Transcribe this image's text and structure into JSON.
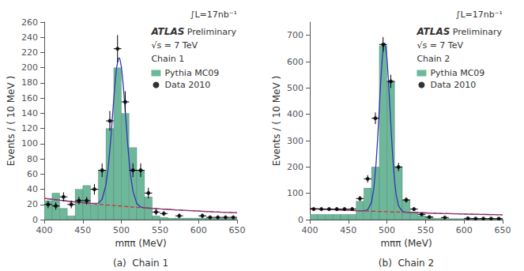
{
  "chart_data": [
    {
      "type": "histogram",
      "title": "(a)  Chain 1",
      "annotations": [
        "∫L=17nb⁻¹",
        "ATLAS",
        "Preliminary",
        "√s = 7 TeV",
        "Chain 1"
      ],
      "xlabel": "mππ (MeV)",
      "ylabel": "Events / ( 10 MeV )",
      "xlim": [
        400,
        650
      ],
      "xticks": [
        400,
        450,
        500,
        550,
        600,
        650
      ],
      "ylim": [
        0,
        260
      ],
      "yticks": [
        0,
        20,
        40,
        60,
        80,
        100,
        120,
        140,
        160,
        180,
        200,
        220,
        240,
        260
      ],
      "grid": false,
      "legend": "upper right",
      "series": [
        {
          "name": "Pythia MC09",
          "type": "histogram",
          "color": "#6db89a",
          "bins": [
            400,
            410,
            420,
            430,
            440,
            450,
            460,
            470,
            480,
            490,
            500,
            510,
            520,
            530,
            540,
            550,
            560,
            570,
            580,
            590,
            600,
            610,
            620,
            630,
            640,
            650
          ],
          "values": [
            25,
            35,
            15,
            5,
            40,
            45,
            20,
            65,
            120,
            200,
            140,
            95,
            65,
            30,
            5,
            3,
            2,
            2,
            2,
            2,
            2,
            2,
            2,
            2,
            2
          ]
        },
        {
          "name": "Data 2010",
          "type": "scatter",
          "color": "#000000",
          "marker": "circle",
          "x": [
            405,
            415,
            425,
            435,
            445,
            455,
            465,
            475,
            485,
            495,
            505,
            515,
            525,
            535,
            545,
            555,
            575,
            605,
            615,
            625,
            635,
            645
          ],
          "values": [
            20,
            18,
            30,
            20,
            25,
            25,
            40,
            65,
            130,
            225,
            155,
            65,
            65,
            35,
            10,
            8,
            5,
            5,
            3,
            3,
            3,
            3
          ],
          "yerr": [
            5,
            5,
            6,
            5,
            5,
            5,
            7,
            9,
            13,
            18,
            14,
            9,
            9,
            7,
            4,
            3,
            3,
            3,
            2,
            2,
            2,
            2
          ],
          "xerr": 5
        },
        {
          "type": "line",
          "color": "#3333bb",
          "line_style": "solid",
          "x": [
            400,
            410,
            420,
            430,
            440,
            450,
            460,
            470,
            475,
            480,
            483,
            486,
            488,
            490,
            492,
            494,
            496,
            497,
            498,
            500,
            502,
            504,
            506,
            508,
            510,
            512,
            515,
            520,
            525,
            530,
            540,
            550,
            560,
            570,
            580,
            590,
            600,
            610,
            620,
            630,
            640,
            650
          ],
          "values": [
            28,
            26.76,
            25.57,
            24.43,
            23.35,
            22.31,
            21.33,
            21.63,
            26.76,
            45.85,
            69.43,
            103.35,
            130.1,
            157.52,
            182.45,
            201.49,
            211.75,
            213.02,
            211.59,
            201.0,
            181.63,
            156.37,
            128.62,
            101.55,
            77.53,
            57.93,
            37.31,
            21.24,
            16.72,
            15.61,
            14.82,
            14.16,
            13.53,
            12.93,
            12.36,
            11.81,
            11.28,
            10.78,
            10.3,
            9.84,
            9.41,
            8.99
          ]
        },
        {
          "type": "line",
          "color": "#cc3333",
          "line_style": "dashed",
          "x": [
            400,
            410,
            420,
            430,
            440,
            450,
            460,
            470,
            475,
            480,
            483,
            486,
            488,
            490,
            492,
            494,
            496,
            497,
            498,
            500,
            502,
            504,
            506,
            508,
            510,
            512,
            515,
            520,
            525,
            530,
            540,
            550,
            560,
            570,
            580,
            590,
            600,
            610,
            620,
            630,
            640,
            650
          ],
          "values": [
            28,
            26.76,
            25.57,
            24.43,
            23.35,
            22.31,
            21.32,
            20.37,
            19.91,
            19.46,
            19.2,
            18.94,
            18.77,
            18.6,
            18.43,
            18.26,
            18.1,
            18.02,
            17.94,
            17.77,
            17.61,
            17.45,
            17.29,
            17.14,
            16.98,
            16.83,
            16.6,
            16.23,
            15.86,
            15.51,
            14.82,
            14.16,
            13.53,
            12.93,
            12.36,
            11.81,
            11.28,
            10.78,
            10.3,
            9.84,
            9.41,
            8.99
          ]
        }
      ]
    },
    {
      "type": "histogram",
      "title": "(b)  Chain 2",
      "annotations": [
        "∫L=17nb⁻¹",
        "ATLAS",
        "Preliminary",
        "√s = 7 TeV",
        "Chain 2"
      ],
      "xlabel": "mππ (MeV)",
      "ylabel": "Events / ( 10 MeV )",
      "xlim": [
        400,
        650
      ],
      "xticks": [
        400,
        450,
        500,
        550,
        600,
        650
      ],
      "ylim": [
        0,
        750
      ],
      "yticks": [
        0,
        100,
        200,
        300,
        400,
        500,
        600,
        700
      ],
      "grid": false,
      "legend": "upper right",
      "series": [
        {
          "name": "Pythia MC09",
          "type": "histogram",
          "color": "#6db89a",
          "bins": [
            400,
            410,
            420,
            430,
            440,
            450,
            460,
            470,
            480,
            490,
            500,
            510,
            520,
            530,
            540,
            550,
            560,
            570,
            580,
            590,
            600,
            610,
            620,
            630,
            640,
            650
          ],
          "values": [
            20,
            20,
            20,
            20,
            20,
            20,
            70,
            120,
            200,
            660,
            525,
            200,
            75,
            30,
            15,
            8,
            5,
            5,
            4,
            4,
            3,
            3,
            3,
            3,
            3
          ]
        },
        {
          "name": "Data 2010",
          "type": "scatter",
          "color": "#000000",
          "marker": "circle",
          "x": [
            405,
            415,
            425,
            435,
            445,
            455,
            465,
            475,
            485,
            495,
            505,
            515,
            525,
            535,
            545,
            555,
            575,
            605,
            615,
            625,
            635,
            645
          ],
          "values": [
            40,
            40,
            40,
            40,
            40,
            40,
            80,
            155,
            385,
            665,
            525,
            200,
            75,
            40,
            20,
            10,
            8,
            5,
            4,
            4,
            4,
            4
          ],
          "yerr": [
            7,
            7,
            7,
            7,
            7,
            7,
            10,
            14,
            22,
            28,
            25,
            16,
            10,
            7,
            5,
            4,
            3,
            3,
            3,
            3,
            3,
            3
          ],
          "xerr": 5
        },
        {
          "type": "line",
          "color": "#3333bb",
          "line_style": "solid",
          "x": [
            400,
            410,
            420,
            430,
            440,
            450,
            460,
            470,
            475,
            480,
            483,
            486,
            488,
            490,
            492,
            494,
            496,
            497,
            498,
            500,
            502,
            504,
            506,
            508,
            510,
            512,
            515,
            520,
            525,
            530,
            540,
            550,
            560,
            570,
            580,
            590,
            600,
            610,
            620,
            630,
            640,
            650
          ],
          "values": [
            42,
            40.62,
            39.29,
            38.0,
            36.76,
            35.55,
            34.39,
            33.64,
            37.29,
            65.7,
            118.46,
            217.72,
            311.36,
            419.29,
            526.77,
            614.54,
            664.0,
            670.4,
            663.8,
            613.93,
            525.75,
            417.88,
            309.54,
            215.49,
            143.2,
            93.34,
            52.09,
            31.05,
            27.9,
            27.23,
            26.34,
            25.47,
            24.64,
            23.83,
            23.05,
            22.29,
            21.56,
            20.86,
            20.17,
            19.51,
            18.87,
            18.25
          ]
        },
        {
          "type": "line",
          "color": "#cc3333",
          "line_style": "dashed",
          "x": [
            400,
            410,
            420,
            430,
            440,
            450,
            460,
            470,
            475,
            480,
            483,
            486,
            488,
            490,
            492,
            494,
            496,
            497,
            498,
            500,
            502,
            504,
            506,
            508,
            510,
            512,
            515,
            520,
            525,
            530,
            540,
            550,
            560,
            570,
            580,
            590,
            600,
            610,
            620,
            630,
            640,
            650
          ],
          "values": [
            42,
            40.62,
            39.29,
            38.0,
            36.76,
            35.55,
            34.39,
            33.26,
            32.71,
            32.17,
            31.85,
            31.53,
            31.32,
            31.11,
            30.91,
            30.7,
            30.5,
            30.4,
            30.3,
            30.09,
            29.89,
            29.7,
            29.5,
            29.3,
            29.11,
            28.91,
            28.63,
            28.15,
            27.69,
            27.23,
            26.34,
            25.47,
            24.64,
            23.83,
            23.05,
            22.29,
            21.56,
            20.86,
            20.17,
            19.51,
            18.87,
            18.25
          ]
        }
      ]
    }
  ]
}
